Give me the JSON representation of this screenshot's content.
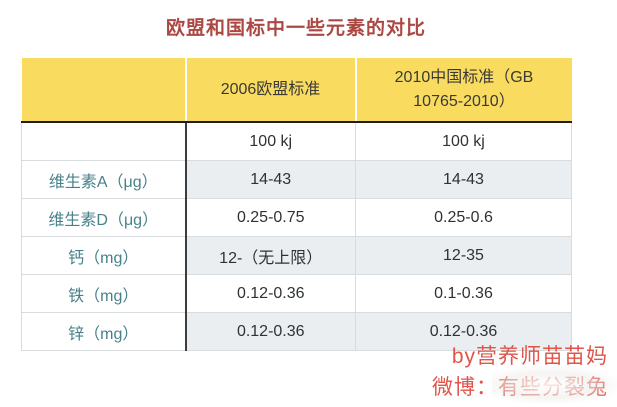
{
  "page_title": "欧盟和国标中一些元素的对比",
  "chart_data": {
    "type": "table",
    "title": "欧盟和国标中一些元素的对比",
    "columns": [
      "",
      "2006欧盟标准",
      "2010中国标准（GB 10765-2010）"
    ],
    "rows": [
      [
        "",
        "100 kj",
        "100 kj"
      ],
      [
        "维生素A（μg）",
        "14-43",
        "14-43"
      ],
      [
        "维生素D（μg）",
        "0.25-0.75",
        "0.25-0.6"
      ],
      [
        "钙（mg）",
        "12-（无上限）",
        "12-35"
      ],
      [
        "铁（mg）",
        "0.12-0.36",
        "0.1-0.36"
      ],
      [
        "锌（mg）",
        "0.12-0.36",
        "0.12-0.36"
      ]
    ],
    "layout": {
      "header_background": "yellow",
      "alternating_row_shading": true,
      "label_column_text": "teal"
    }
  },
  "signature": {
    "byline": "by营养师苗苗妈",
    "weibo": "微博：有些分裂兔"
  },
  "colors": {
    "title-red": "#AC4843",
    "header-yellow": "#F9DB60",
    "row-gray": "#EBEEF1",
    "label-teal": "#47828B",
    "cell-text": "#2F3235",
    "signature-red": "#E0544A",
    "border-light": "#D8DCDF",
    "border-dark": "#1E1E1E"
  }
}
